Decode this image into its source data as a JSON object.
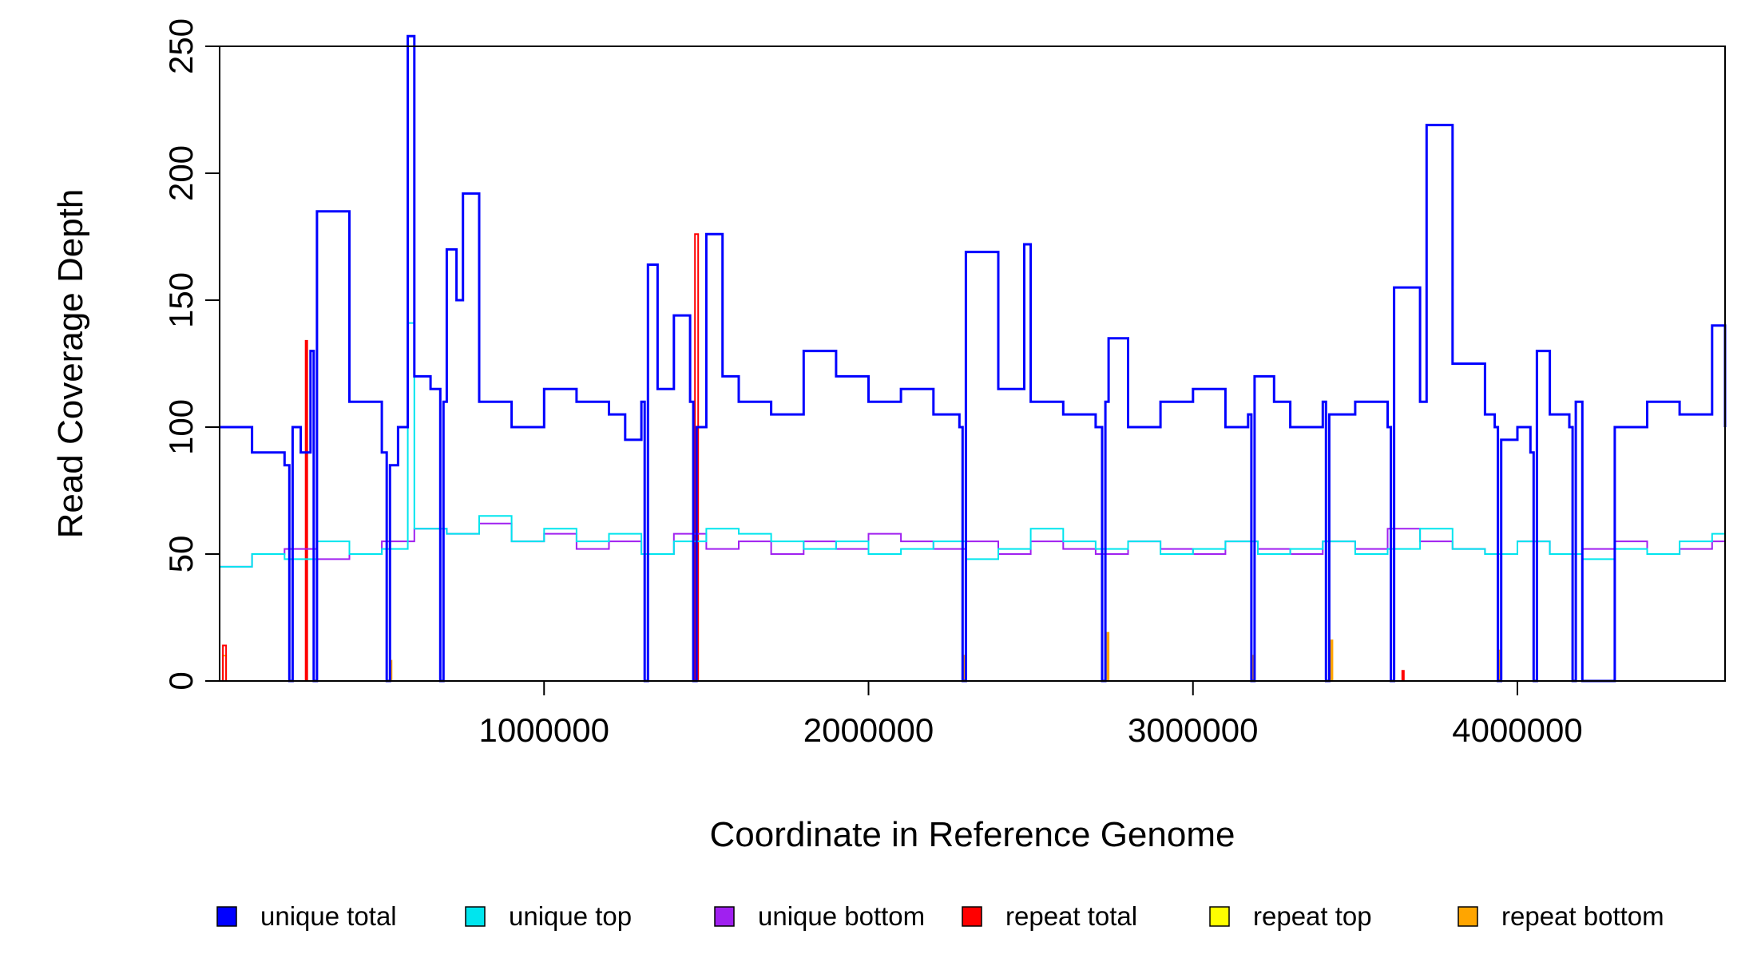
{
  "chart_data": {
    "type": "line",
    "title": "",
    "xlabel": "Coordinate in Reference Genome",
    "ylabel": "Read Coverage Depth",
    "xlim": [
      0,
      4640000
    ],
    "ylim": [
      0,
      250
    ],
    "x_ticks": [
      1000000,
      2000000,
      3000000,
      4000000
    ],
    "x_tick_labels": [
      "1000000",
      "2000000",
      "3000000",
      "4000000"
    ],
    "y_ticks": [
      0,
      50,
      100,
      150,
      200,
      250
    ],
    "y_tick_labels": [
      "0",
      "50",
      "100",
      "150",
      "200",
      "250"
    ],
    "grid": false,
    "legend_position": "bottom",
    "series": [
      {
        "name": "unique total",
        "color": "#0000ff",
        "x": [
          0,
          100000,
          200000,
          215000,
          225000,
          250000,
          280000,
          290000,
          300000,
          400000,
          500000,
          515000,
          525000,
          550000,
          580000,
          600000,
          650000,
          680000,
          690000,
          700000,
          730000,
          750000,
          800000,
          900000,
          1000000,
          1100000,
          1200000,
          1250000,
          1300000,
          1310000,
          1320000,
          1350000,
          1400000,
          1450000,
          1460000,
          1470000,
          1500000,
          1550000,
          1600000,
          1700000,
          1800000,
          1900000,
          2000000,
          2100000,
          2200000,
          2280000,
          2290000,
          2300000,
          2400000,
          2480000,
          2500000,
          2600000,
          2700000,
          2720000,
          2730000,
          2740000,
          2800000,
          2900000,
          3000000,
          3100000,
          3170000,
          3180000,
          3190000,
          3250000,
          3300000,
          3400000,
          3410000,
          3420000,
          3500000,
          3600000,
          3610000,
          3620000,
          3700000,
          3720000,
          3800000,
          3900000,
          3930000,
          3940000,
          3950000,
          4000000,
          4040000,
          4050000,
          4060000,
          4100000,
          4160000,
          4170000,
          4180000,
          4200000,
          4300000,
          4400000,
          4500000,
          4600000,
          4640000
        ],
        "values": [
          100,
          90,
          85,
          0,
          100,
          90,
          130,
          0,
          185,
          110,
          90,
          0,
          85,
          100,
          254,
          120,
          115,
          0,
          110,
          170,
          150,
          192,
          110,
          100,
          115,
          110,
          105,
          95,
          110,
          0,
          164,
          115,
          144,
          110,
          0,
          100,
          176,
          120,
          110,
          105,
          130,
          120,
          110,
          115,
          105,
          100,
          0,
          169,
          115,
          172,
          110,
          105,
          100,
          0,
          110,
          135,
          100,
          110,
          115,
          100,
          105,
          0,
          120,
          110,
          100,
          110,
          0,
          105,
          110,
          100,
          0,
          155,
          110,
          219,
          125,
          105,
          100,
          0,
          95,
          100,
          90,
          0,
          130,
          105,
          100,
          0,
          110,
          0,
          100,
          110,
          105,
          140,
          100
        ]
      },
      {
        "name": "unique top",
        "color": "#00e5ee",
        "x": [
          0,
          100000,
          200000,
          300000,
          400000,
          500000,
          580000,
          600000,
          700000,
          800000,
          900000,
          1000000,
          1100000,
          1200000,
          1300000,
          1400000,
          1500000,
          1600000,
          1700000,
          1800000,
          1900000,
          2000000,
          2100000,
          2200000,
          2300000,
          2400000,
          2500000,
          2600000,
          2700000,
          2800000,
          2900000,
          3000000,
          3100000,
          3200000,
          3300000,
          3400000,
          3500000,
          3600000,
          3700000,
          3800000,
          3900000,
          4000000,
          4100000,
          4200000,
          4300000,
          4400000,
          4500000,
          4600000,
          4640000
        ],
        "values": [
          45,
          50,
          48,
          55,
          50,
          52,
          141,
          60,
          58,
          65,
          55,
          60,
          55,
          58,
          50,
          55,
          60,
          58,
          55,
          52,
          55,
          50,
          52,
          55,
          48,
          52,
          60,
          55,
          52,
          55,
          50,
          52,
          55,
          50,
          52,
          55,
          50,
          52,
          60,
          52,
          50,
          55,
          50,
          48,
          52,
          50,
          55,
          58,
          55
        ]
      },
      {
        "name": "unique bottom",
        "color": "#a020f0",
        "x": [
          0,
          100000,
          200000,
          300000,
          400000,
          500000,
          600000,
          700000,
          800000,
          900000,
          1000000,
          1100000,
          1200000,
          1300000,
          1400000,
          1500000,
          1600000,
          1700000,
          1800000,
          1900000,
          2000000,
          2100000,
          2200000,
          2300000,
          2400000,
          2500000,
          2600000,
          2700000,
          2800000,
          2900000,
          3000000,
          3100000,
          3200000,
          3300000,
          3400000,
          3500000,
          3600000,
          3700000,
          3800000,
          3900000,
          4000000,
          4100000,
          4200000,
          4300000,
          4400000,
          4500000,
          4600000,
          4640000
        ],
        "values": [
          45,
          50,
          52,
          48,
          50,
          55,
          60,
          58,
          62,
          55,
          58,
          52,
          55,
          50,
          58,
          52,
          55,
          50,
          55,
          52,
          58,
          55,
          52,
          55,
          50,
          55,
          52,
          50,
          55,
          52,
          50,
          55,
          52,
          50,
          55,
          52,
          60,
          55,
          52,
          50,
          55,
          50,
          52,
          55,
          50,
          52,
          55,
          50
        ]
      },
      {
        "name": "repeat total",
        "color": "#ff0000",
        "x": [
          0,
          10000,
          20000,
          260000,
          265000,
          270000,
          1455000,
          1465000,
          1475000,
          3640000,
          3645000,
          3650000,
          4640000
        ],
        "values": [
          0,
          14,
          0,
          0,
          134,
          0,
          0,
          176,
          0,
          0,
          4,
          0,
          0
        ]
      },
      {
        "name": "repeat top",
        "color": "#ffff00",
        "x": [
          0,
          4640000
        ],
        "values": [
          0,
          0
        ]
      },
      {
        "name": "repeat bottom",
        "color": "#ffa500",
        "x": [
          0,
          10000,
          20000,
          520000,
          525000,
          530000,
          2290000,
          2295000,
          2300000,
          2730000,
          2735000,
          2740000,
          3180000,
          3185000,
          3190000,
          3420000,
          3425000,
          3430000,
          3940000,
          3945000,
          3950000,
          4640000
        ],
        "values": [
          0,
          10,
          0,
          0,
          8,
          0,
          0,
          10,
          0,
          0,
          19,
          0,
          0,
          10,
          0,
          0,
          16,
          0,
          0,
          12,
          0,
          0
        ]
      }
    ]
  },
  "legend": {
    "items": [
      {
        "label": "unique total",
        "color": "#0000ff"
      },
      {
        "label": "unique top",
        "color": "#00e5ee"
      },
      {
        "label": "unique bottom",
        "color": "#a020f0"
      },
      {
        "label": "repeat total",
        "color": "#ff0000"
      },
      {
        "label": "repeat top",
        "color": "#ffff00"
      },
      {
        "label": "repeat bottom",
        "color": "#ffa500"
      }
    ]
  }
}
